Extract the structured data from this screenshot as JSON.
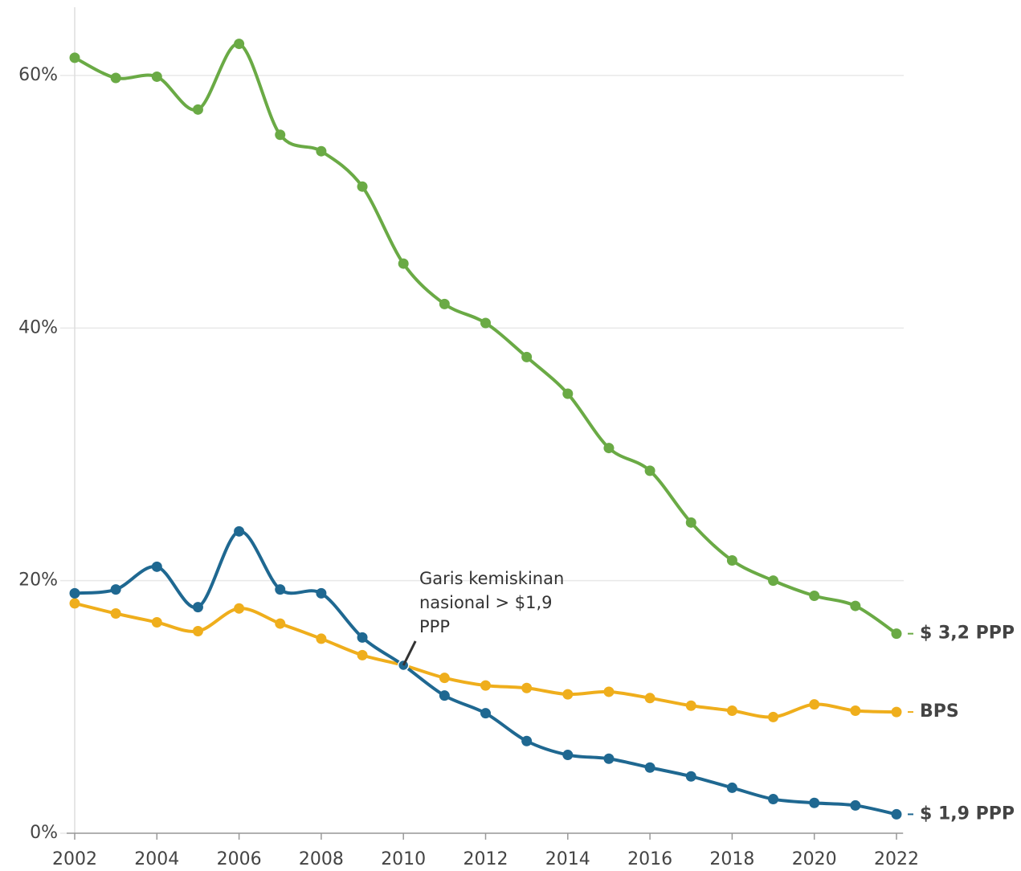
{
  "chart_data": {
    "type": "line",
    "x": [
      2002,
      2003,
      2004,
      2005,
      2006,
      2007,
      2008,
      2009,
      2010,
      2011,
      2012,
      2013,
      2014,
      2015,
      2016,
      2017,
      2018,
      2019,
      2020,
      2021,
      2022
    ],
    "series": [
      {
        "name": "$ 3,2 PPP",
        "color": "#6aaa45",
        "values": [
          61.4,
          59.8,
          59.9,
          57.3,
          62.5,
          55.3,
          54.0,
          51.2,
          45.1,
          41.9,
          40.4,
          37.7,
          34.8,
          30.5,
          28.7,
          24.6,
          21.6,
          20.0,
          18.8,
          18.0,
          15.8
        ]
      },
      {
        "name": "BPS",
        "color": "#efae1c",
        "values": [
          18.2,
          17.4,
          16.7,
          16.0,
          17.8,
          16.6,
          15.4,
          14.1,
          13.3,
          12.3,
          11.7,
          11.5,
          11.0,
          11.2,
          10.7,
          10.1,
          9.7,
          9.2,
          10.2,
          9.7,
          9.6
        ]
      },
      {
        "name": "$ 1,9 PPP",
        "color": "#1f6891",
        "values": [
          19.0,
          19.3,
          21.1,
          17.9,
          23.9,
          19.3,
          19.0,
          15.5,
          13.3,
          10.9,
          9.5,
          7.3,
          6.2,
          5.9,
          5.2,
          4.5,
          3.6,
          2.7,
          2.4,
          2.2,
          1.5
        ]
      }
    ],
    "annotation": "Garis kemiskinan nasional > $1,9 PPP",
    "xlim": [
      2002,
      2022
    ],
    "xticks": [
      2002,
      2004,
      2006,
      2008,
      2010,
      2012,
      2014,
      2016,
      2018,
      2020,
      2022
    ],
    "ylim": [
      0,
      65.4
    ],
    "yticks": [
      {
        "value": 0,
        "label": "0%"
      },
      {
        "value": 20,
        "label": "20%"
      },
      {
        "value": 40,
        "label": "40%"
      },
      {
        "value": 60,
        "label": "60%"
      }
    ],
    "grid": true
  }
}
